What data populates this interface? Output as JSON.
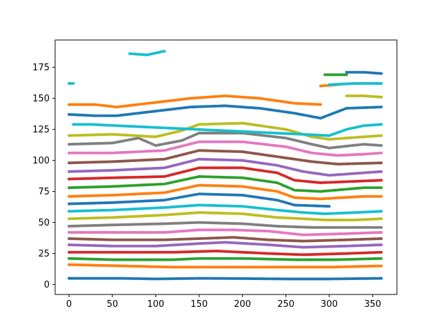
{
  "chart_data": {
    "type": "scatter",
    "title": "",
    "xlabel": "",
    "ylabel": "",
    "xlim": [
      -16,
      378
    ],
    "ylim": [
      -8,
      197
    ],
    "x_ticks": [
      0,
      50,
      100,
      150,
      200,
      250,
      300,
      350
    ],
    "y_ticks": [
      0,
      25,
      50,
      75,
      100,
      125,
      150,
      175
    ],
    "grid": false,
    "legend": "none",
    "series": [
      {
        "color": "#1f77b4",
        "points": [
          [
            0,
            5
          ],
          [
            60,
            5
          ],
          [
            100,
            4.5
          ],
          [
            150,
            5
          ],
          [
            200,
            4.8
          ],
          [
            250,
            4.5
          ],
          [
            300,
            4.5
          ],
          [
            360,
            5
          ]
        ]
      },
      {
        "color": "#ff7f0e",
        "points": [
          [
            0,
            16
          ],
          [
            60,
            15
          ],
          [
            120,
            14
          ],
          [
            180,
            14
          ],
          [
            240,
            14
          ],
          [
            300,
            14
          ],
          [
            360,
            15
          ]
        ]
      },
      {
        "color": "#2ca02c",
        "points": [
          [
            0,
            21
          ],
          [
            50,
            20
          ],
          [
            120,
            20
          ],
          [
            150,
            21
          ],
          [
            200,
            21
          ],
          [
            260,
            20
          ],
          [
            310,
            20
          ],
          [
            360,
            21
          ]
        ]
      },
      {
        "color": "#d62728",
        "points": [
          [
            0,
            26
          ],
          [
            50,
            26
          ],
          [
            120,
            26
          ],
          [
            170,
            27
          ],
          [
            230,
            25
          ],
          [
            270,
            24
          ],
          [
            320,
            25
          ],
          [
            360,
            26
          ]
        ]
      },
      {
        "color": "#9467bd",
        "points": [
          [
            0,
            32
          ],
          [
            50,
            31
          ],
          [
            100,
            31
          ],
          [
            150,
            33
          ],
          [
            180,
            34
          ],
          [
            230,
            32
          ],
          [
            270,
            30
          ],
          [
            320,
            31
          ],
          [
            360,
            32
          ]
        ]
      },
      {
        "color": "#8c564b",
        "points": [
          [
            0,
            37
          ],
          [
            50,
            36
          ],
          [
            110,
            36
          ],
          [
            150,
            37
          ],
          [
            190,
            38
          ],
          [
            230,
            36
          ],
          [
            270,
            35
          ],
          [
            320,
            36
          ],
          [
            360,
            37
          ]
        ]
      },
      {
        "color": "#e377c2",
        "points": [
          [
            0,
            42
          ],
          [
            50,
            42
          ],
          [
            110,
            42
          ],
          [
            150,
            44
          ],
          [
            190,
            44
          ],
          [
            230,
            43
          ],
          [
            270,
            40
          ],
          [
            320,
            41
          ],
          [
            360,
            42
          ]
        ]
      },
      {
        "color": "#7f7f7f",
        "points": [
          [
            0,
            47
          ],
          [
            50,
            48
          ],
          [
            110,
            49
          ],
          [
            150,
            50
          ],
          [
            200,
            49
          ],
          [
            240,
            47
          ],
          [
            280,
            46
          ],
          [
            360,
            46
          ]
        ]
      },
      {
        "color": "#bcbd22",
        "points": [
          [
            0,
            53
          ],
          [
            50,
            54
          ],
          [
            110,
            56
          ],
          [
            150,
            58
          ],
          [
            200,
            57
          ],
          [
            240,
            54
          ],
          [
            270,
            53
          ],
          [
            295,
            52
          ],
          [
            330,
            52
          ],
          [
            360,
            53
          ]
        ]
      },
      {
        "color": "#17becf",
        "points": [
          [
            0,
            59
          ],
          [
            50,
            60
          ],
          [
            110,
            62
          ],
          [
            150,
            64
          ],
          [
            200,
            63
          ],
          [
            240,
            60
          ],
          [
            270,
            58
          ],
          [
            295,
            57
          ],
          [
            330,
            58
          ],
          [
            360,
            59
          ]
        ]
      },
      {
        "color": "#1f77b4",
        "points": [
          [
            0,
            65
          ],
          [
            50,
            66
          ],
          [
            110,
            68
          ],
          [
            150,
            73
          ],
          [
            200,
            72
          ],
          [
            240,
            68
          ],
          [
            260,
            64
          ],
          [
            300,
            63
          ]
        ]
      },
      {
        "color": "#ff7f0e",
        "points": [
          [
            0,
            71
          ],
          [
            50,
            72
          ],
          [
            110,
            74
          ],
          [
            150,
            80
          ],
          [
            200,
            79
          ],
          [
            240,
            75
          ],
          [
            260,
            70
          ],
          [
            290,
            69
          ],
          [
            340,
            71
          ],
          [
            360,
            71
          ]
        ]
      },
      {
        "color": "#2ca02c",
        "points": [
          [
            0,
            78
          ],
          [
            50,
            79
          ],
          [
            110,
            81
          ],
          [
            150,
            87
          ],
          [
            200,
            86
          ],
          [
            240,
            82
          ],
          [
            260,
            76
          ],
          [
            290,
            75
          ],
          [
            340,
            78
          ],
          [
            360,
            78
          ]
        ]
      },
      {
        "color": "#d62728",
        "points": [
          [
            0,
            85
          ],
          [
            50,
            86
          ],
          [
            110,
            87
          ],
          [
            150,
            94
          ],
          [
            200,
            94
          ],
          [
            240,
            90
          ],
          [
            260,
            84
          ],
          [
            290,
            82
          ],
          [
            360,
            84
          ]
        ]
      },
      {
        "color": "#9467bd",
        "points": [
          [
            0,
            91
          ],
          [
            50,
            92
          ],
          [
            110,
            94
          ],
          [
            150,
            101
          ],
          [
            200,
            100
          ],
          [
            240,
            96
          ],
          [
            270,
            91
          ],
          [
            300,
            88
          ],
          [
            320,
            89
          ],
          [
            360,
            91
          ]
        ]
      },
      {
        "color": "#8c564b",
        "points": [
          [
            0,
            98
          ],
          [
            50,
            99
          ],
          [
            110,
            101
          ],
          [
            150,
            108
          ],
          [
            200,
            107
          ],
          [
            250,
            102
          ],
          [
            280,
            99
          ],
          [
            310,
            97
          ],
          [
            360,
            98
          ]
        ]
      },
      {
        "color": "#e377c2",
        "points": [
          [
            0,
            106
          ],
          [
            50,
            106
          ],
          [
            110,
            108
          ],
          [
            150,
            115
          ],
          [
            200,
            115
          ],
          [
            250,
            111
          ],
          [
            280,
            106
          ],
          [
            310,
            104
          ],
          [
            340,
            105
          ],
          [
            360,
            106
          ]
        ]
      },
      {
        "color": "#7f7f7f",
        "points": [
          [
            0,
            113
          ],
          [
            50,
            114
          ],
          [
            80,
            118
          ],
          [
            100,
            112
          ],
          [
            130,
            116
          ],
          [
            150,
            122
          ],
          [
            200,
            122
          ],
          [
            250,
            118
          ],
          [
            280,
            113
          ],
          [
            300,
            110
          ],
          [
            340,
            113
          ],
          [
            360,
            112
          ]
        ]
      },
      {
        "color": "#bcbd22",
        "points": [
          [
            0,
            120
          ],
          [
            50,
            121
          ],
          [
            100,
            119
          ],
          [
            130,
            124
          ],
          [
            150,
            129
          ],
          [
            200,
            130
          ],
          [
            250,
            125
          ],
          [
            280,
            119
          ],
          [
            300,
            117
          ],
          [
            340,
            119
          ],
          [
            360,
            120
          ]
        ]
      },
      {
        "color": "#17becf",
        "points": [
          [
            5,
            129
          ],
          [
            25,
            129
          ],
          [
            55,
            128
          ],
          [
            300,
            120
          ],
          [
            320,
            125
          ],
          [
            340,
            128
          ],
          [
            360,
            129
          ]
        ]
      },
      {
        "color": "#1f77b4",
        "points": [
          [
            0,
            137
          ],
          [
            30,
            136
          ],
          [
            55,
            136
          ],
          [
            140,
            143
          ],
          [
            180,
            144
          ],
          [
            220,
            142
          ],
          [
            260,
            138
          ],
          [
            290,
            134
          ],
          [
            320,
            142
          ],
          [
            360,
            143
          ]
        ]
      },
      {
        "color": "#ff7f0e",
        "points": [
          [
            0,
            145
          ],
          [
            30,
            145
          ],
          [
            55,
            143
          ],
          [
            140,
            150
          ],
          [
            180,
            152
          ],
          [
            220,
            150
          ],
          [
            260,
            146
          ],
          [
            290,
            145
          ]
        ]
      },
      {
        "color": "#17becf",
        "points": [
          [
            0,
            162
          ],
          [
            5,
            162
          ]
        ]
      },
      {
        "color": "#17becf",
        "points": [
          [
            70,
            186
          ],
          [
            90,
            185
          ],
          [
            110,
            188
          ]
        ]
      },
      {
        "color": "#ff7f0e",
        "points": [
          [
            290,
            160
          ],
          [
            310,
            161
          ]
        ]
      },
      {
        "color": "#2ca02c",
        "points": [
          [
            295,
            169
          ],
          [
            320,
            169
          ]
        ]
      },
      {
        "color": "#17becf",
        "points": [
          [
            300,
            161
          ],
          [
            330,
            162
          ],
          [
            360,
            162
          ]
        ]
      },
      {
        "color": "#1f77b4",
        "points": [
          [
            320,
            171
          ],
          [
            340,
            171
          ],
          [
            360,
            170
          ]
        ]
      },
      {
        "color": "#bcbd22",
        "points": [
          [
            320,
            152
          ],
          [
            340,
            152
          ],
          [
            360,
            151
          ]
        ]
      }
    ]
  }
}
